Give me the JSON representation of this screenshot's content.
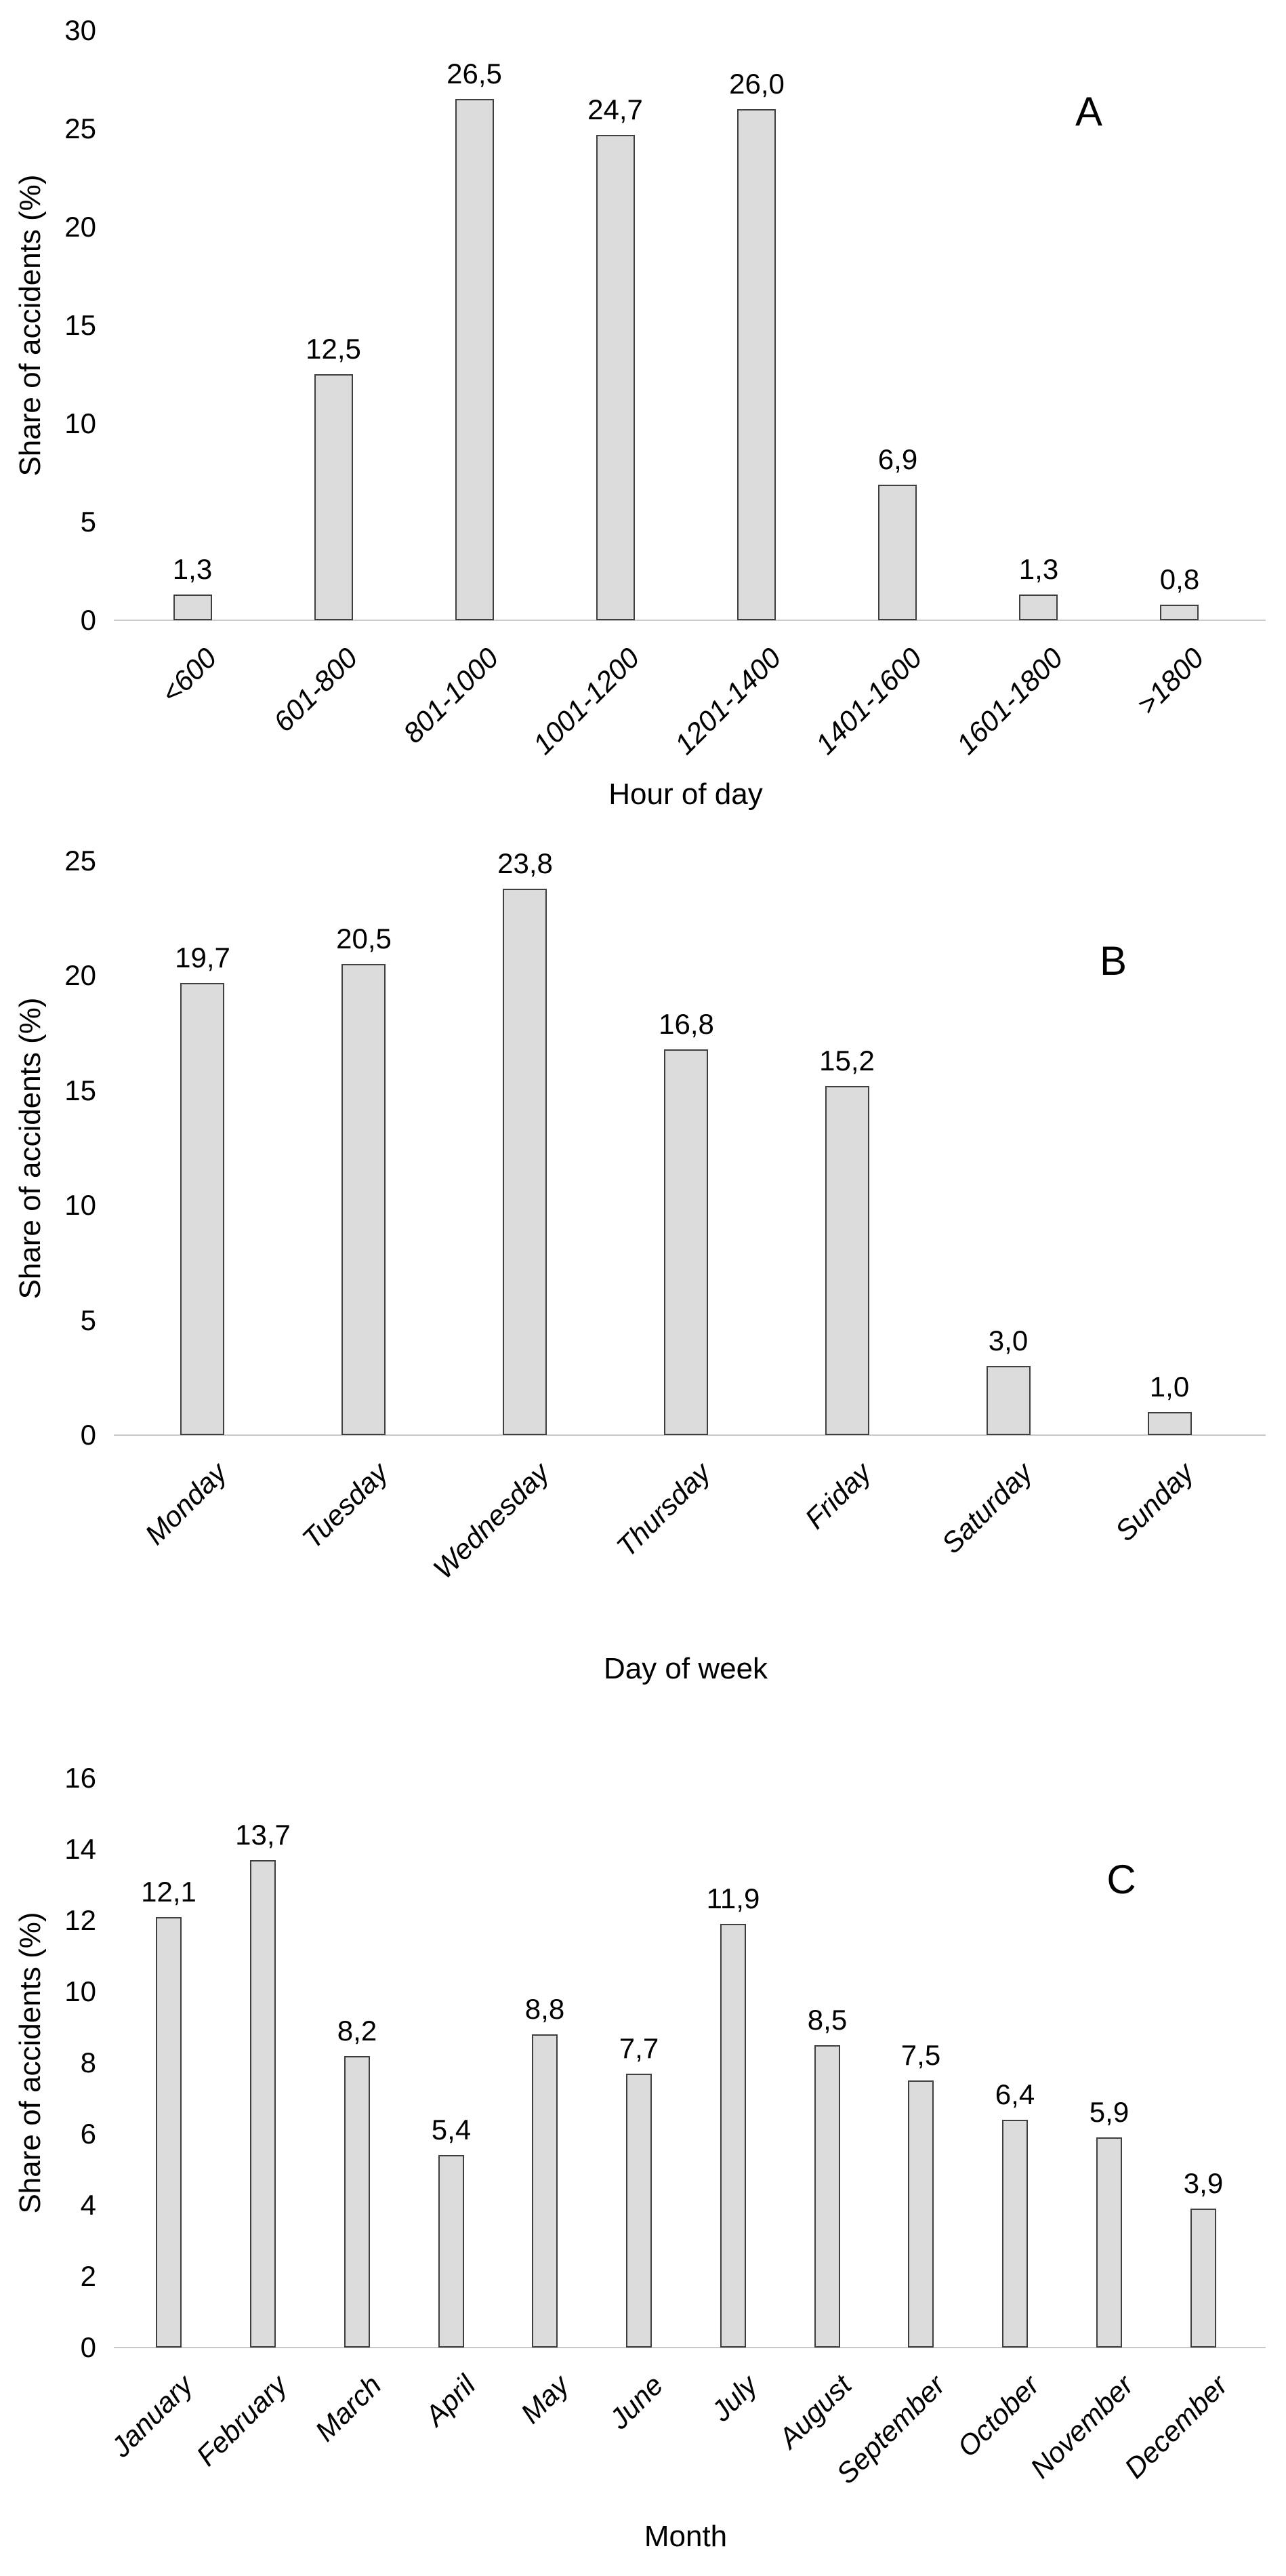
{
  "figure": {
    "background": "#ffffff",
    "description_visible_text_only": true
  },
  "style": {
    "bar_fill": "#dcdcdc",
    "bar_border": "#3f3f3f",
    "axis_line_color": "#c9c9c9",
    "text_color": "#000000"
  },
  "chart_data": [
    {
      "panel_label": "A",
      "type": "bar",
      "xlabel": "Hour of day",
      "ylabel": "Share of accidents (%)",
      "categories": [
        "<600",
        "601-800",
        "801-1000",
        "1001-1200",
        "1201-1400",
        "1401-1600",
        "1601-1800",
        ">1800"
      ],
      "values": [
        1.3,
        12.5,
        26.5,
        24.7,
        26.0,
        6.9,
        1.3,
        0.8
      ],
      "value_labels": [
        "1,3",
        "12,5",
        "26,5",
        "24,7",
        "26,0",
        "6,9",
        "1,3",
        "0,8"
      ],
      "y_ticks": [
        0,
        5,
        10,
        15,
        20,
        25,
        30
      ],
      "ylim": [
        0,
        30
      ],
      "grid": false,
      "legend": null
    },
    {
      "panel_label": "B",
      "type": "bar",
      "xlabel": "Day of week",
      "ylabel": "Share of accidents (%)",
      "categories": [
        "Monday",
        "Tuesday",
        "Wednesday",
        "Thursday",
        "Friday",
        "Saturday",
        "Sunday"
      ],
      "values": [
        19.7,
        20.5,
        23.8,
        16.8,
        15.2,
        3.0,
        1.0
      ],
      "value_labels": [
        "19,7",
        "20,5",
        "23,8",
        "16,8",
        "15,2",
        "3,0",
        "1,0"
      ],
      "y_ticks": [
        0,
        5,
        10,
        15,
        20,
        25
      ],
      "ylim": [
        0,
        25
      ],
      "grid": false,
      "legend": null
    },
    {
      "panel_label": "C",
      "type": "bar",
      "xlabel": "Month",
      "ylabel": "Share of accidents (%)",
      "categories": [
        "January",
        "February",
        "March",
        "April",
        "May",
        "June",
        "July",
        "August",
        "September",
        "October",
        "November",
        "December"
      ],
      "values": [
        12.1,
        13.7,
        8.2,
        5.4,
        8.8,
        7.7,
        11.9,
        8.5,
        7.5,
        6.4,
        5.9,
        3.9
      ],
      "value_labels": [
        "12,1",
        "13,7",
        "8,2",
        "5,4",
        "8,8",
        "7,7",
        "11,9",
        "8,5",
        "7,5",
        "6,4",
        "5,9",
        "3,9"
      ],
      "y_ticks": [
        0,
        2,
        4,
        6,
        8,
        10,
        12,
        14,
        16
      ],
      "ylim": [
        0,
        16
      ],
      "grid": false,
      "legend": null
    }
  ]
}
